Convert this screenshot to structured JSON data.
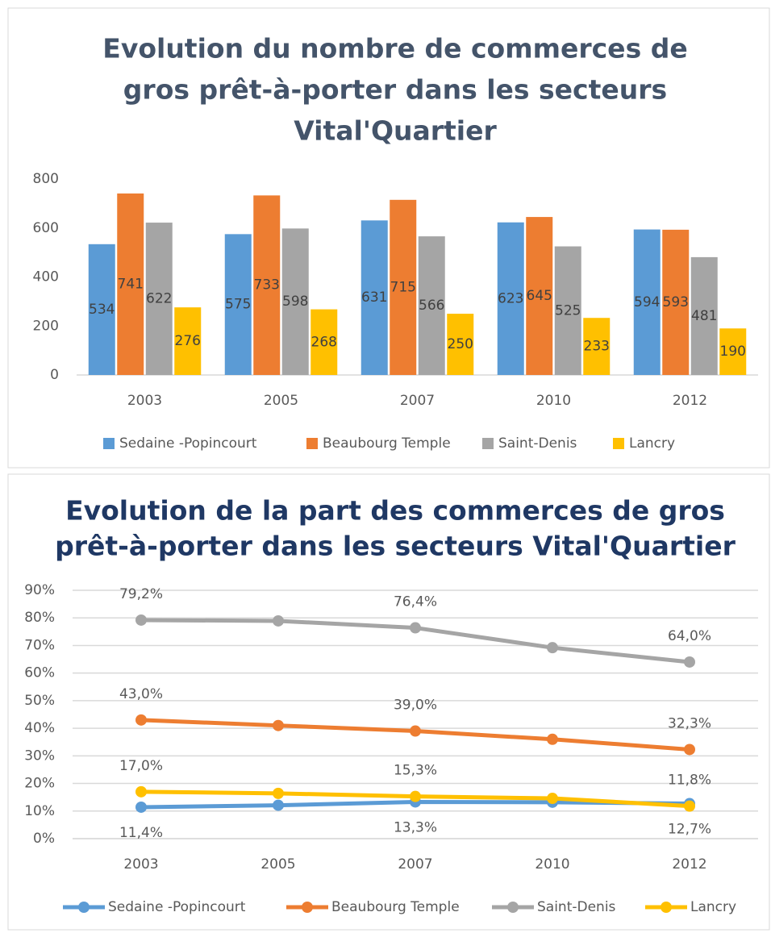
{
  "chart_data": [
    {
      "type": "bar",
      "title": [
        "Evolution du nombre de commerces de",
        "gros prêt-à-porter dans les secteurs",
        "Vital'Quartier"
      ],
      "title_color": "#44546a",
      "categories": [
        "2003",
        "2005",
        "2007",
        "2010",
        "2012"
      ],
      "series": [
        {
          "name": "Sedaine -Popincourt",
          "color": "#5b9bd5",
          "values": [
            534,
            575,
            631,
            623,
            594
          ]
        },
        {
          "name": "Beaubourg Temple",
          "color": "#ed7d31",
          "values": [
            741,
            733,
            715,
            645,
            593
          ]
        },
        {
          "name": "Saint-Denis",
          "color": "#a5a5a5",
          "values": [
            622,
            598,
            566,
            525,
            481
          ]
        },
        {
          "name": "Lancry",
          "color": "#ffc000",
          "values": [
            276,
            268,
            250,
            233,
            190
          ]
        }
      ],
      "ylim": [
        0,
        800
      ],
      "yticks": [
        0,
        200,
        400,
        600,
        800
      ],
      "grid": false,
      "legend": "bottom"
    },
    {
      "type": "line",
      "title": [
        "Evolution de la part des commerces de gros",
        "prêt-à-porter dans les secteurs Vital'Quartier"
      ],
      "title_color": "#1f3864",
      "categories": [
        "2003",
        "2005",
        "2007",
        "2010",
        "2012"
      ],
      "series": [
        {
          "name": "Sedaine -Popincourt",
          "color": "#5b9bd5",
          "values": [
            11.4,
            12.1,
            13.3,
            13.2,
            12.7
          ],
          "value_labels": [
            "11,4%",
            null,
            "13,3%",
            null,
            "12,7%"
          ],
          "label_position": "below"
        },
        {
          "name": "Beaubourg Temple",
          "color": "#ed7d31",
          "values": [
            43.0,
            41.0,
            39.0,
            36.0,
            32.3
          ],
          "value_labels": [
            "43,0%",
            null,
            "39,0%",
            null,
            "32,3%"
          ],
          "label_position": "above"
        },
        {
          "name": "Saint-Denis",
          "color": "#a5a5a5",
          "values": [
            79.2,
            78.9,
            76.4,
            69.2,
            64.0
          ],
          "value_labels": [
            "79,2%",
            null,
            "76,4%",
            null,
            "64,0%"
          ],
          "label_position": "above"
        },
        {
          "name": "Lancry",
          "color": "#ffc000",
          "values": [
            17.0,
            16.4,
            15.3,
            14.6,
            11.8
          ],
          "value_labels": [
            "17,0%",
            null,
            "15,3%",
            null,
            "11,8%"
          ],
          "label_position": "above"
        }
      ],
      "ylim": [
        0,
        90
      ],
      "yticks": [
        {
          "value": 0,
          "label": "0%"
        },
        {
          "value": 10,
          "label": "10%"
        },
        {
          "value": 20,
          "label": "20%"
        },
        {
          "value": 30,
          "label": "30%"
        },
        {
          "value": 40,
          "label": "40%"
        },
        {
          "value": 50,
          "label": "50%"
        },
        {
          "value": 60,
          "label": "60%"
        },
        {
          "value": 70,
          "label": "70%"
        },
        {
          "value": 80,
          "label": "80%"
        },
        {
          "value": 90,
          "label": "90%"
        }
      ],
      "grid": true,
      "legend": "bottom"
    }
  ]
}
